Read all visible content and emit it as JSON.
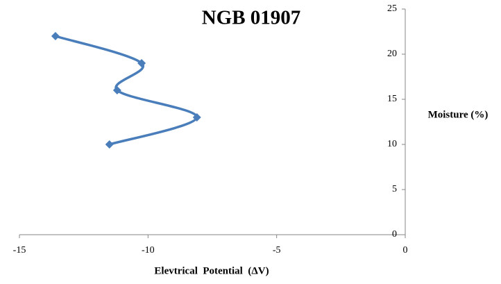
{
  "chart_data": {
    "type": "scatter",
    "title": "NGB 01907",
    "xlabel": "Elevtrical  Potential  (ΔV)",
    "ylabel": "Moisture (%)",
    "series": [
      {
        "name": "NGB 01907",
        "color": "#4a7ebb",
        "x": [
          -11.5,
          -8.1,
          -11.2,
          -10.25,
          -13.6
        ],
        "values": [
          10,
          13,
          16,
          19,
          22
        ]
      }
    ],
    "xlim": [
      -15,
      0
    ],
    "xticks": [
      -15,
      -10,
      -5,
      0
    ],
    "ylim": [
      0,
      25
    ],
    "yticks": [
      0,
      5,
      10,
      15,
      20,
      25
    ],
    "grid": false,
    "smooth": true
  }
}
